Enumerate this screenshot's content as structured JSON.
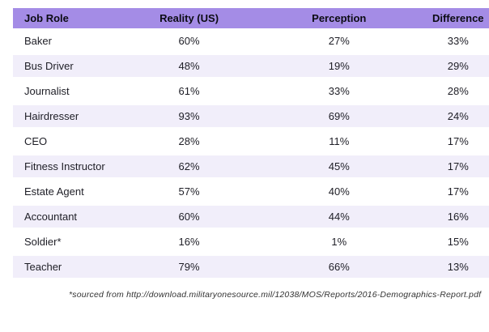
{
  "table": {
    "columns": [
      {
        "label": "Job Role"
      },
      {
        "label": "Reality (US)"
      },
      {
        "label": "Perception"
      },
      {
        "label": "Difference"
      }
    ],
    "rows": [
      {
        "role": "Baker",
        "reality": "60%",
        "perception": "27%",
        "difference": "33%"
      },
      {
        "role": "Bus Driver",
        "reality": "48%",
        "perception": "19%",
        "difference": "29%"
      },
      {
        "role": "Journalist",
        "reality": "61%",
        "perception": "33%",
        "difference": "28%"
      },
      {
        "role": "Hairdresser",
        "reality": "93%",
        "perception": "69%",
        "difference": "24%"
      },
      {
        "role": "CEO",
        "reality": "28%",
        "perception": "11%",
        "difference": "17%"
      },
      {
        "role": "Fitness Instructor",
        "reality": "62%",
        "perception": "45%",
        "difference": "17%"
      },
      {
        "role": "Estate Agent",
        "reality": "57%",
        "perception": "40%",
        "difference": "17%"
      },
      {
        "role": "Accountant",
        "reality": "60%",
        "perception": "44%",
        "difference": "16%"
      },
      {
        "role": "Soldier*",
        "reality": "16%",
        "perception": "1%",
        "difference": "15%"
      },
      {
        "role": "Teacher",
        "reality": "79%",
        "perception": "66%",
        "difference": "13%"
      }
    ]
  },
  "footnote": "*sourced from http://download.militaryonesource.mil/12038/MOS/Reports/2016-Demographics-Report.pdf",
  "colors": {
    "header_bg": "#a48ce6",
    "stripe_bg": "#f1eefa",
    "header_text": "#0c0c14",
    "body_text": "#1e1e26",
    "footnote_text": "#333333"
  },
  "chart_data": {
    "type": "table",
    "title": "",
    "columns": [
      "Job Role",
      "Reality (US)",
      "Perception",
      "Difference"
    ],
    "rows": [
      [
        "Baker",
        "60%",
        "27%",
        "33%"
      ],
      [
        "Bus Driver",
        "48%",
        "19%",
        "29%"
      ],
      [
        "Journalist",
        "61%",
        "33%",
        "28%"
      ],
      [
        "Hairdresser",
        "93%",
        "69%",
        "24%"
      ],
      [
        "CEO",
        "28%",
        "11%",
        "17%"
      ],
      [
        "Fitness Instructor",
        "62%",
        "45%",
        "17%"
      ],
      [
        "Estate Agent",
        "57%",
        "40%",
        "17%"
      ],
      [
        "Accountant",
        "60%",
        "44%",
        "16%"
      ],
      [
        "Soldier*",
        "16%",
        "1%",
        "15%"
      ],
      [
        "Teacher",
        "79%",
        "66%",
        "13%"
      ]
    ],
    "footnote": "*sourced from http://download.militaryonesource.mil/12038/MOS/Reports/2016-Demographics-Report.pdf",
    "layout": {
      "stripe": "alternating lavender rows",
      "header": "solid purple bar",
      "grid": false
    }
  }
}
